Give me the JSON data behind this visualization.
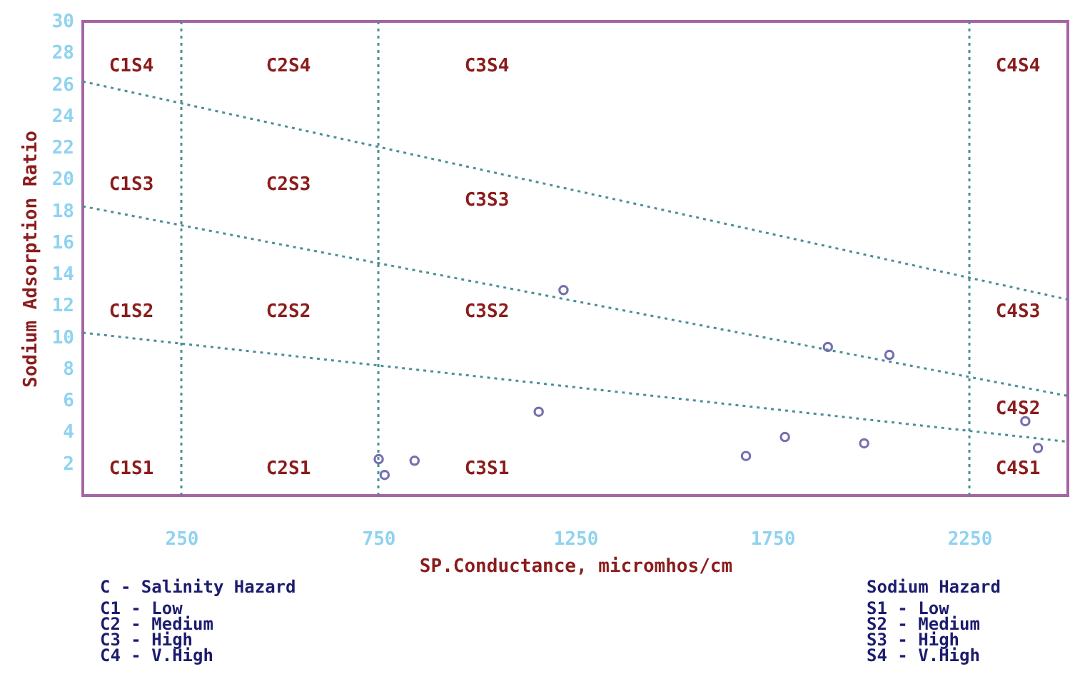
{
  "chart_data": {
    "type": "scatter",
    "xlabel": "SP.Conductance, micromhos/cm",
    "ylabel": "Sodium Adsorption Ratio",
    "xlim": [
      0,
      2500
    ],
    "xticks": [
      250,
      750,
      1250,
      1750,
      2250
    ],
    "ylim": [
      0,
      30
    ],
    "yticks": [
      2,
      4,
      6,
      8,
      10,
      12,
      14,
      16,
      18,
      20,
      22,
      24,
      26,
      28,
      30
    ],
    "grid": false,
    "series": [
      {
        "marker": "circle",
        "color": "#3b3590",
        "x": [
          751,
          766,
          842,
          1157,
          1220,
          1683,
          1782,
          1891,
          1983,
          2047,
          2392,
          2424
        ],
        "values": [
          2.3,
          1.3,
          2.2,
          5.3,
          13.0,
          2.5,
          3.7,
          9.4,
          3.3,
          8.9,
          4.7,
          3.0
        ]
      },
      {
        "type": "line",
        "color": "#4a8f96",
        "line_style": "dotted",
        "x": [
          0,
          2500
        ],
        "values": [
          10.3,
          3.4
        ]
      },
      {
        "type": "line",
        "color": "#4a8f96",
        "line_style": "dotted",
        "x": [
          0,
          2500
        ],
        "values": [
          18.3,
          6.3
        ]
      },
      {
        "type": "line",
        "color": "#4a8f96",
        "line_style": "dotted",
        "x": [
          0,
          2500
        ],
        "values": [
          26.2,
          12.4
        ]
      }
    ],
    "ref_lines": [
      {
        "axis": "x",
        "value": 250,
        "color": "#4a8f96",
        "line_style": "dotted"
      },
      {
        "axis": "x",
        "value": 750,
        "color": "#4a8f96",
        "line_style": "dotted"
      },
      {
        "axis": "x",
        "value": 2250,
        "color": "#4a8f96",
        "line_style": "dotted"
      }
    ],
    "annotations": [
      "C1S4",
      "C2S4",
      "C3S4",
      "C4S4",
      "C1S3",
      "C2S3",
      "C3S3",
      "C4S3",
      "C1S2",
      "C2S2",
      "C3S2",
      "C4S2",
      "C1S1",
      "C2S1",
      "C3S1",
      "C4S1",
      "C - Salinity Hazard",
      "C1 - Low",
      "C2 - Medium",
      "C3 - High",
      "C4 - V.High",
      "Sodium Hazard",
      "S1 - Low",
      "S2 - Medium",
      "S3 - High",
      "S4 - V.High"
    ]
  }
}
